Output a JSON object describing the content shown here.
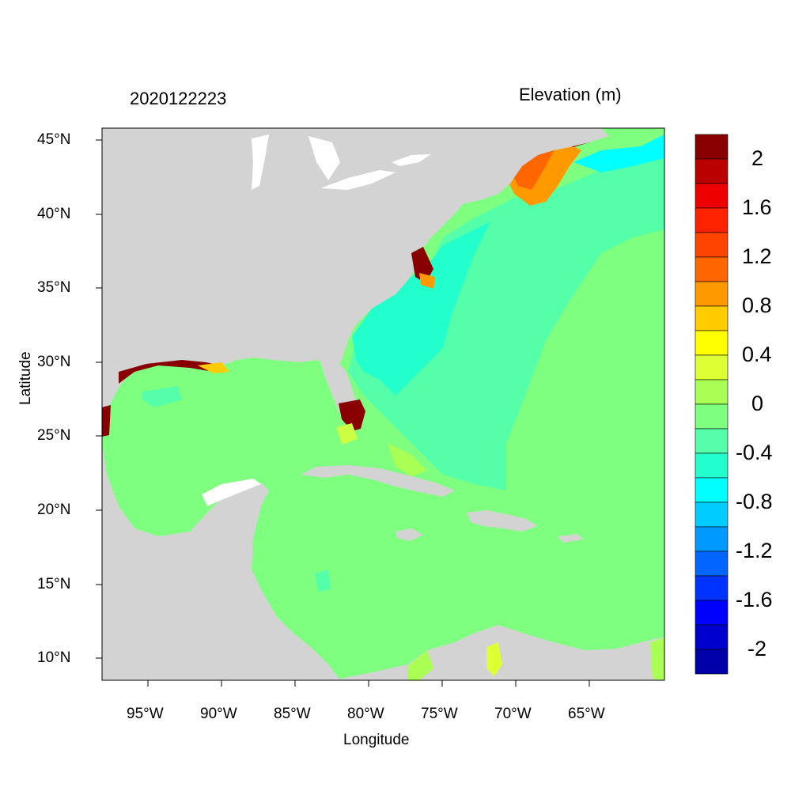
{
  "title_left": "2020122223",
  "title_right": "Elevation (m)",
  "x_axis_title": "Longitude",
  "y_axis_title": "Latitude",
  "lon_ticks": [
    "95°W",
    "90°W",
    "85°W",
    "80°W",
    "75°W",
    "70°W",
    "65°W"
  ],
  "lat_ticks": [
    "45°N",
    "40°N",
    "35°N",
    "30°N",
    "25°N",
    "20°N",
    "15°N",
    "10°N"
  ],
  "colorbar": {
    "labels": [
      "2",
      "1.6",
      "1.2",
      "0.8",
      "0.4",
      "0",
      "-0.4",
      "-0.8",
      "-1.2",
      "-1.6",
      "-2"
    ],
    "colors": [
      "#880000",
      "#bb0000",
      "#ee0000",
      "#ff2200",
      "#ff4400",
      "#ff6600",
      "#ff9900",
      "#ffcc00",
      "#ffff00",
      "#ddff33",
      "#aaff55",
      "#7fff7f",
      "#55ffaa",
      "#22ffcc",
      "#00ffff",
      "#00ccff",
      "#0099ff",
      "#0066ff",
      "#0033ff",
      "#0000ff",
      "#0000cc",
      "#0000aa"
    ]
  },
  "colors": {
    "land": "#d3d3d3",
    "ocean_base": "#7fff7f"
  }
}
